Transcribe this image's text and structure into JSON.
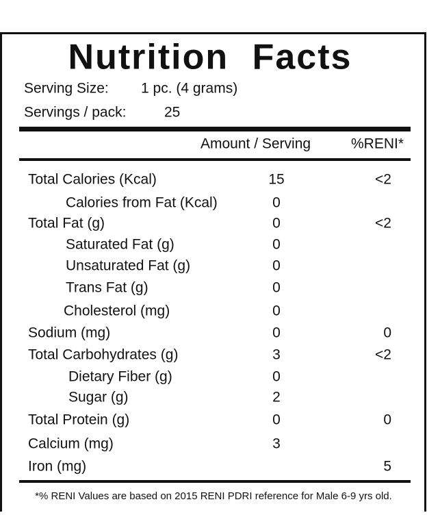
{
  "title": "Nutrition Facts",
  "serving_size": {
    "label": "Serving Size:",
    "value": "1 pc. (4 grams)"
  },
  "servings_per_pack": {
    "label": "Servings / pack:",
    "value": 25
  },
  "header": {
    "amount": "Amount / Serving",
    "reni": "%RENI*"
  },
  "rows": [
    {
      "name": "Total Calories (Kcal)",
      "amount": 15,
      "reni": "<2"
    },
    {
      "name": "Calories from Fat (Kcal)",
      "amount": 0
    },
    {
      "name": "Total Fat (g)",
      "amount": 0,
      "reni": "<2"
    },
    {
      "name": "Saturated Fat (g)",
      "amount": 0
    },
    {
      "name": "Unsaturated Fat (g)",
      "amount": 0
    },
    {
      "name": "Trans Fat (g)",
      "amount": 0
    },
    {
      "name": "Cholesterol (mg)",
      "amount": 0
    },
    {
      "name": "Sodium (mg)",
      "amount": 0,
      "reni": 0
    },
    {
      "name": "Total Carbohydrates (g)",
      "amount": 3,
      "reni": "<2"
    },
    {
      "name": "Dietary Fiber (g)",
      "amount": 0
    },
    {
      "name": "Sugar (g)",
      "amount": 2
    },
    {
      "name": "Total Protein (g)",
      "amount": 0,
      "reni": 0
    },
    {
      "name": "Calcium (mg)",
      "amount": 3
    },
    {
      "name": "Iron (mg)",
      "reni": 5
    }
  ],
  "footnote": "*% RENI Values are based on 2015 RENI PDRI reference for Male 6-9 yrs old."
}
